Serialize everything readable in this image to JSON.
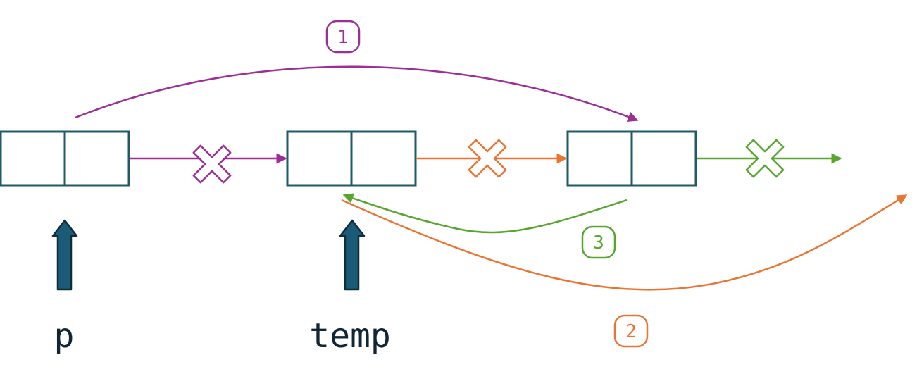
{
  "nodes": [
    {
      "id": "node-1"
    },
    {
      "id": "node-2"
    },
    {
      "id": "node-3"
    }
  ],
  "pointers": [
    {
      "label": "p"
    },
    {
      "label": "temp"
    }
  ],
  "steps": [
    {
      "number": "1",
      "color": "#9b2f95"
    },
    {
      "number": "2",
      "color": "#ea7433"
    },
    {
      "number": "3",
      "color": "#58a630"
    }
  ],
  "colors": {
    "node_stroke": "#1f5a6b",
    "pointer_fill": "#1b5b78",
    "pointer_stroke": "#0d2d3a",
    "label_text": "#122535",
    "purple": "#9b2f95",
    "orange": "#ea7433",
    "green": "#58a630"
  },
  "icons": {
    "removed_link": "cross-icon",
    "pointer": "arrow-up-icon"
  }
}
